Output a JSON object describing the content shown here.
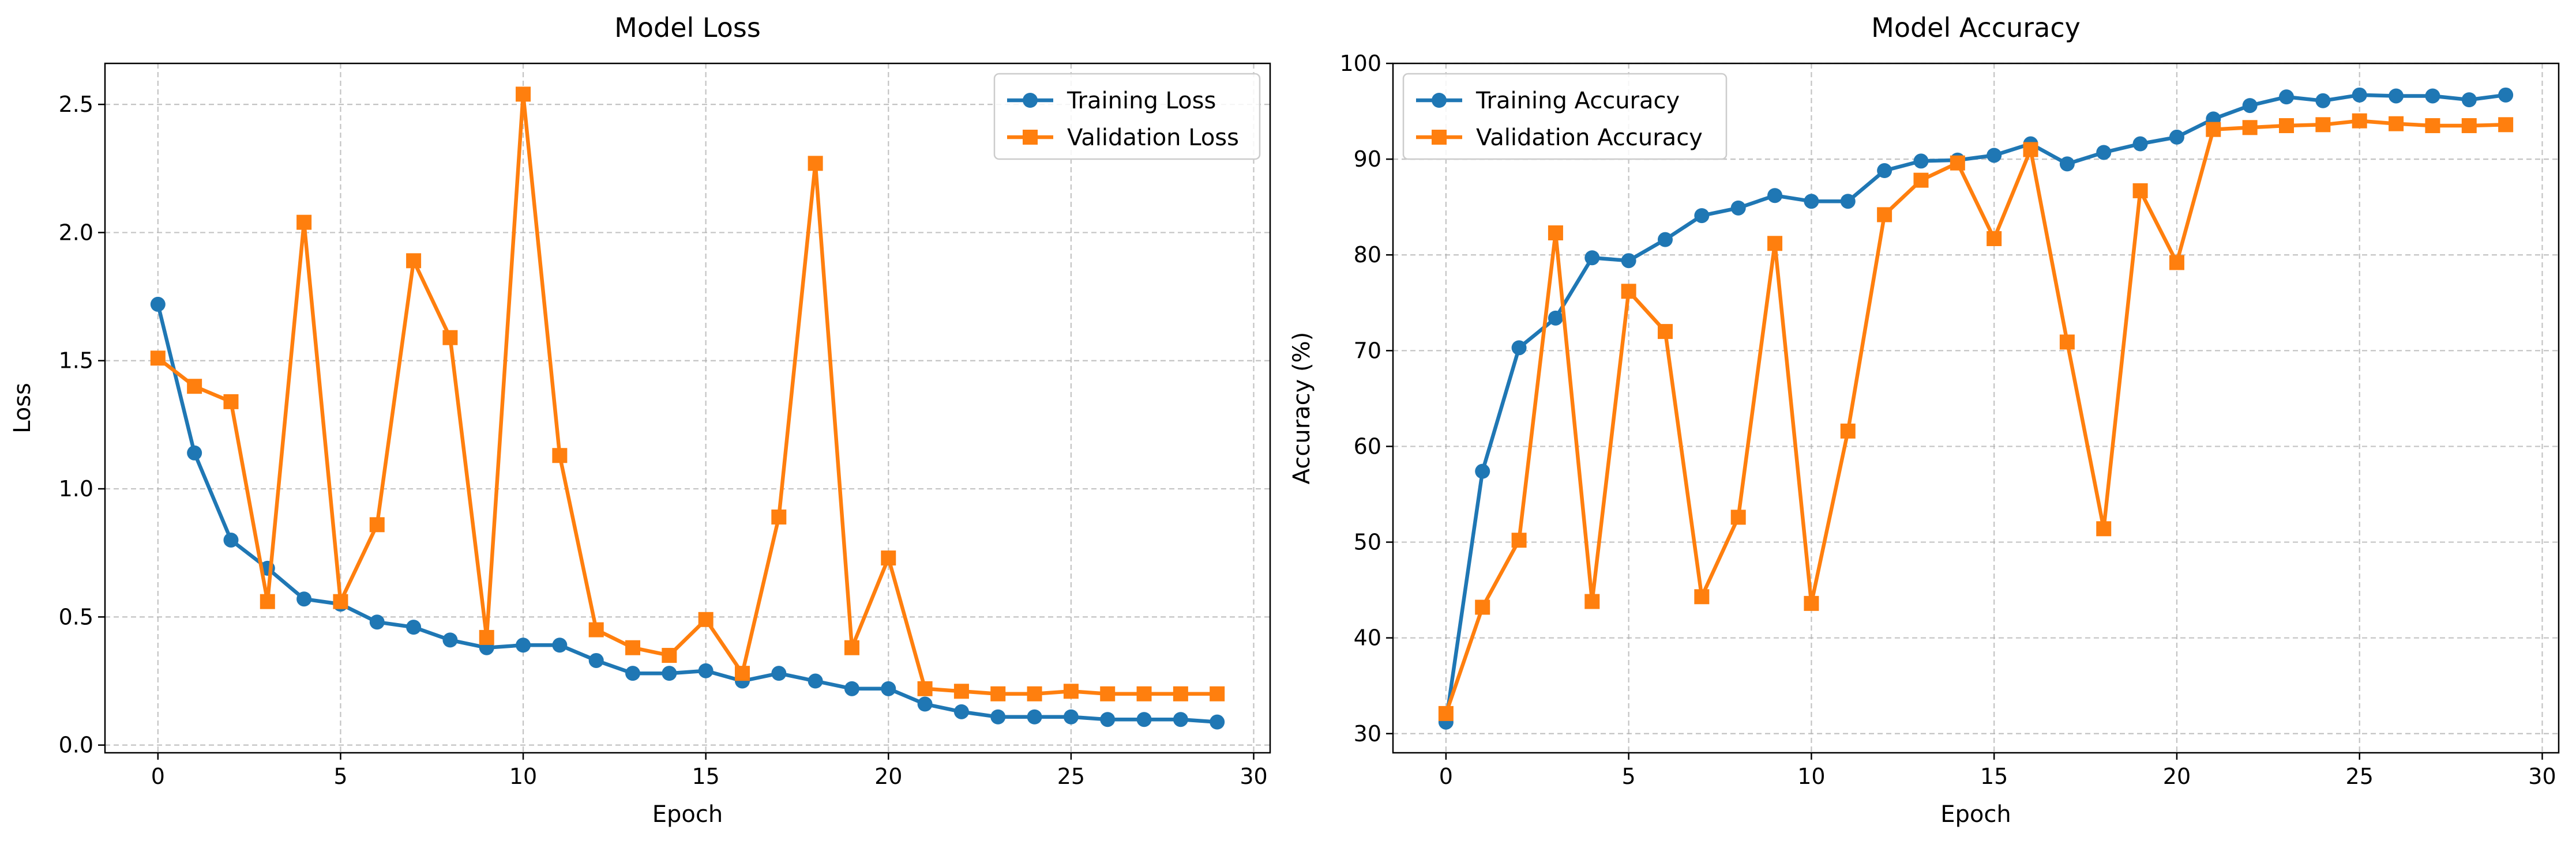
{
  "chart_data": [
    {
      "type": "line",
      "title": "Model Loss",
      "xlabel": "Epoch",
      "ylabel": "Loss",
      "xlim": [
        -1.45,
        30.45
      ],
      "ylim": [
        -0.03,
        2.66
      ],
      "xticks": [
        0,
        5,
        10,
        15,
        20,
        25,
        30
      ],
      "yticks": [
        0.0,
        0.5,
        1.0,
        1.5,
        2.0,
        2.5
      ],
      "ytick_labels": [
        "0.0",
        "0.5",
        "1.0",
        "1.5",
        "2.0",
        "2.5"
      ],
      "grid": true,
      "legend": "upper right",
      "x": [
        0,
        1,
        2,
        3,
        4,
        5,
        6,
        7,
        8,
        9,
        10,
        11,
        12,
        13,
        14,
        15,
        16,
        17,
        18,
        19,
        20,
        21,
        22,
        23,
        24,
        25,
        26,
        27,
        28,
        29
      ],
      "series": [
        {
          "name": "Training Loss",
          "color": "#1f77b4",
          "marker": "circle",
          "values": [
            1.72,
            1.14,
            0.8,
            0.69,
            0.57,
            0.55,
            0.48,
            0.46,
            0.41,
            0.38,
            0.39,
            0.39,
            0.33,
            0.28,
            0.28,
            0.29,
            0.25,
            0.28,
            0.25,
            0.22,
            0.22,
            0.16,
            0.13,
            0.11,
            0.11,
            0.11,
            0.1,
            0.1,
            0.1,
            0.09
          ]
        },
        {
          "name": "Validation Loss",
          "color": "#ff7f0e",
          "marker": "square",
          "values": [
            1.51,
            1.4,
            1.34,
            0.56,
            2.04,
            0.56,
            0.86,
            1.89,
            1.59,
            0.42,
            2.54,
            1.13,
            0.45,
            0.38,
            0.35,
            0.49,
            0.28,
            0.89,
            2.27,
            0.38,
            0.73,
            0.22,
            0.21,
            0.2,
            0.2,
            0.21,
            0.2,
            0.2,
            0.2,
            0.2
          ]
        }
      ]
    },
    {
      "type": "line",
      "title": "Model Accuracy",
      "xlabel": "Epoch",
      "ylabel": "Accuracy (%)",
      "xlim": [
        -1.45,
        30.45
      ],
      "ylim": [
        28.0,
        100.0
      ],
      "xticks": [
        0,
        5,
        10,
        15,
        20,
        25,
        30
      ],
      "yticks": [
        30,
        40,
        50,
        60,
        70,
        80,
        90,
        100
      ],
      "ytick_labels": [
        "30",
        "40",
        "50",
        "60",
        "70",
        "80",
        "90",
        "100"
      ],
      "grid": true,
      "legend": "upper left",
      "x": [
        0,
        1,
        2,
        3,
        4,
        5,
        6,
        7,
        8,
        9,
        10,
        11,
        12,
        13,
        14,
        15,
        16,
        17,
        18,
        19,
        20,
        21,
        22,
        23,
        24,
        25,
        26,
        27,
        28,
        29
      ],
      "series": [
        {
          "name": "Training Accuracy",
          "color": "#1f77b4",
          "marker": "circle",
          "values": [
            31.2,
            57.4,
            70.3,
            73.4,
            79.7,
            79.4,
            81.6,
            84.1,
            84.9,
            86.2,
            85.6,
            85.6,
            88.8,
            89.8,
            89.9,
            90.4,
            91.6,
            89.5,
            90.7,
            91.6,
            92.3,
            94.2,
            95.6,
            96.5,
            96.1,
            96.7,
            96.6,
            96.6,
            96.2,
            96.7
          ]
        },
        {
          "name": "Validation Accuracy",
          "color": "#ff7f0e",
          "marker": "square",
          "values": [
            32.1,
            43.2,
            50.2,
            82.3,
            43.8,
            76.2,
            72.0,
            44.3,
            52.6,
            81.2,
            43.6,
            61.6,
            84.2,
            87.8,
            89.6,
            81.7,
            91.0,
            70.9,
            51.4,
            86.7,
            79.2,
            93.1,
            93.3,
            93.5,
            93.6,
            94.0,
            93.7,
            93.5,
            93.5,
            93.6
          ]
        }
      ]
    }
  ]
}
